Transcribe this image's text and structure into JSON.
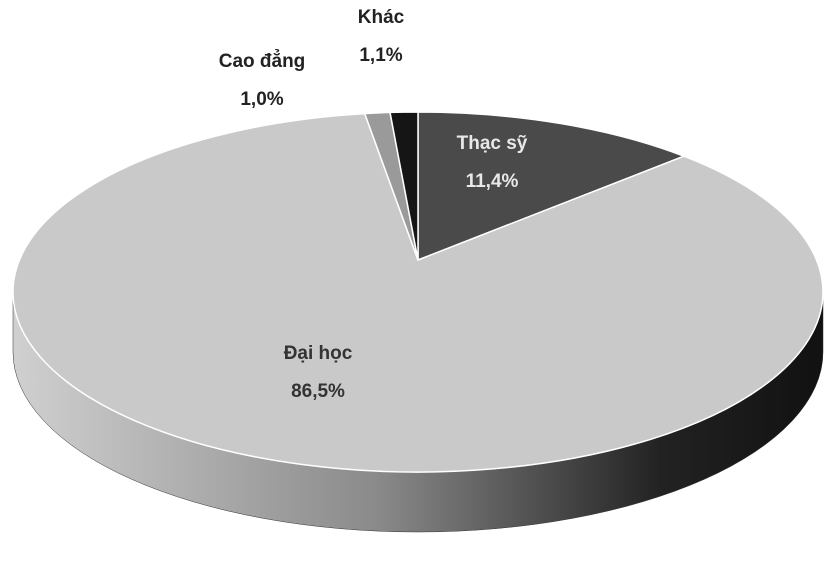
{
  "chart_data": {
    "type": "pie",
    "categories": [
      "Thạc sỹ",
      "Đại học",
      "Cao đẳng",
      "Khác"
    ],
    "values": [
      11.4,
      86.5,
      1.0,
      1.1
    ],
    "value_labels": [
      "11,4%",
      "86,5%",
      "1,0%",
      "1,1%"
    ],
    "colors": [
      "#4a4a4a",
      "#c9c9c9",
      "#9a9a9a",
      "#151515"
    ]
  }
}
